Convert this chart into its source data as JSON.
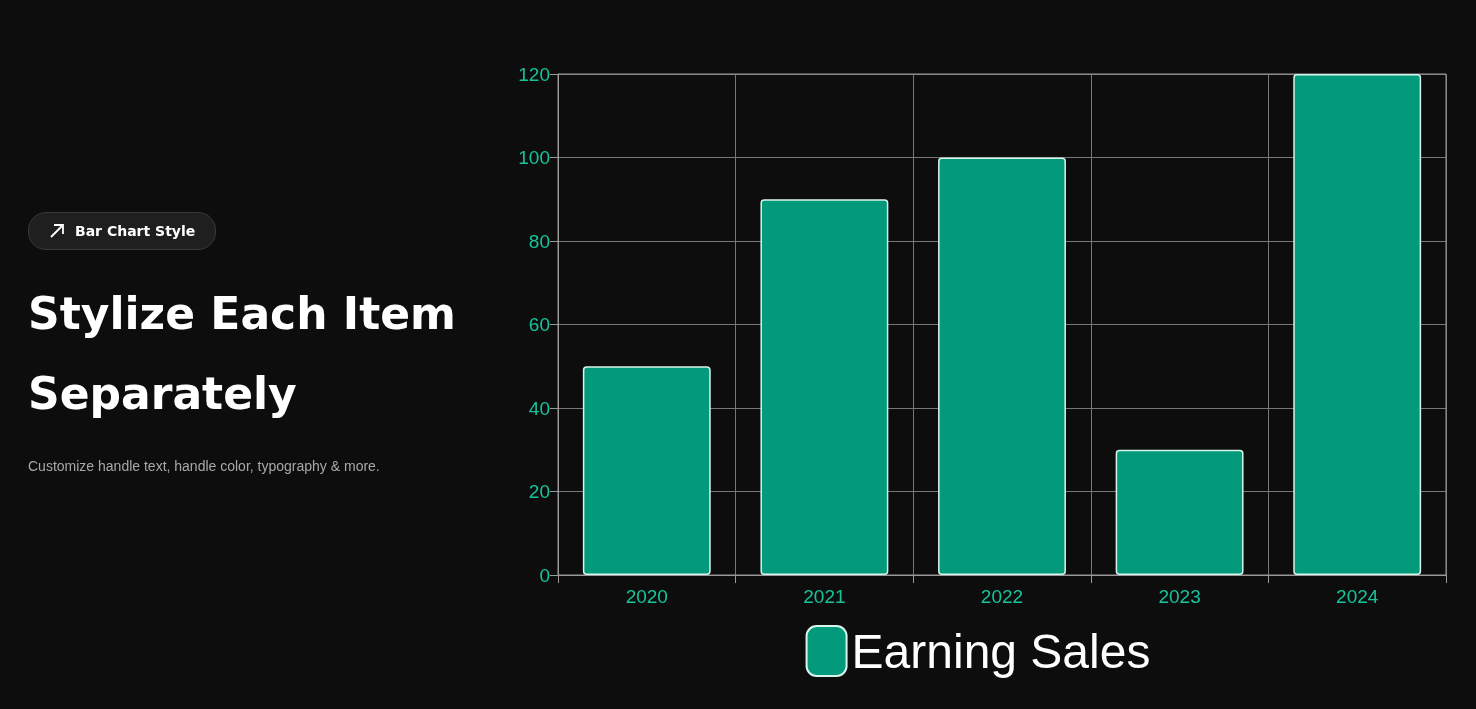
{
  "chart_data": {
    "type": "bar",
    "title": "Stylize Each Item Separately",
    "subtitle": "Customize handle text, handle color, typography & more.",
    "annotations": [
      "Bar Chart Style"
    ],
    "categories": [
      "2020",
      "2021",
      "2022",
      "2023",
      "2024"
    ],
    "series": [
      {
        "name": "Earning Sales",
        "color": "#039a7c",
        "values": [
          50,
          90,
          100,
          30,
          120
        ]
      }
    ],
    "ylim": [
      0,
      120
    ],
    "yticks": [
      0,
      20,
      40,
      60,
      80,
      100,
      120
    ],
    "grid": true,
    "legend": "bottom"
  }
}
